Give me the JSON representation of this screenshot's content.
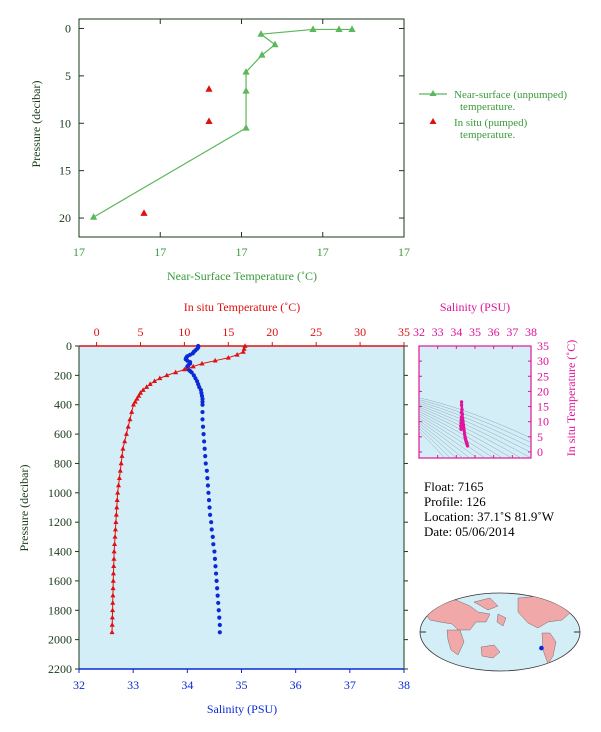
{
  "colors": {
    "green": "#5cb85c",
    "green_text": "#3a9a3a",
    "red": "#e01010",
    "blue": "#0b2ad6",
    "magenta": "#e0149a",
    "axis_dark": "#1a3a1a",
    "panel_bg": "#d4eef7",
    "map_ocean": "#d4eef7",
    "map_land": "#f0a8a8"
  },
  "chart_data": [
    {
      "type": "line",
      "id": "near-surface",
      "xlabel": "Near-Surface Temperature (˚C)",
      "ylabel": "Pressure (decibar)",
      "x_tick_labels": [
        "17",
        "17",
        "17",
        "17",
        "17"
      ],
      "y_ticks": [
        0,
        5,
        10,
        15,
        20
      ],
      "ylim": [
        22,
        -1
      ],
      "legend": {
        "placement": "right",
        "entries": [
          {
            "line1": "Near-surface (unpumped)",
            "line2": "temperature."
          },
          {
            "line1": "In situ (pumped)",
            "line2": "temperature."
          }
        ]
      },
      "x_index_range": [
        0,
        1
      ],
      "series": [
        {
          "name": "Near-surface (unpumped) temperature",
          "marker": "triangle-line",
          "points": [
            {
              "xi": 0.045,
              "p": 19.9
            },
            {
              "xi": 0.514,
              "p": 10.5
            },
            {
              "xi": 0.514,
              "p": 6.6
            },
            {
              "xi": 0.514,
              "p": 4.6
            },
            {
              "xi": 0.563,
              "p": 2.8
            },
            {
              "xi": 0.603,
              "p": 1.7
            },
            {
              "xi": 0.56,
              "p": 0.6
            },
            {
              "xi": 0.72,
              "p": 0.1
            },
            {
              "xi": 0.8,
              "p": 0.1
            },
            {
              "xi": 0.84,
              "p": 0.1
            }
          ]
        },
        {
          "name": "In situ (pumped) temperature",
          "marker": "triangle",
          "points": [
            {
              "xi": 0.4,
              "p": 6.4
            },
            {
              "xi": 0.4,
              "p": 9.8
            },
            {
              "xi": 0.2,
              "p": 19.5
            }
          ]
        }
      ]
    },
    {
      "type": "scatter",
      "id": "profile",
      "top_axis_label": "In situ Temperature (˚C)",
      "bottom_axis_label": "Salinity (PSU)",
      "ylabel": "Pressure (decibar)",
      "temp_ticks": [
        0,
        5,
        10,
        15,
        20,
        25,
        30,
        35
      ],
      "sal_ticks": [
        32,
        33,
        34,
        35,
        36,
        37,
        38
      ],
      "pressure_ticks": [
        0,
        200,
        400,
        600,
        800,
        1000,
        1200,
        1400,
        1600,
        1800,
        2000,
        2200
      ],
      "temp_range": [
        -2,
        35
      ],
      "sal_range": [
        32,
        38
      ],
      "pressure_range": [
        0,
        2200
      ],
      "temperature": {
        "p": [
          0,
          20,
          40,
          60,
          80,
          100,
          120,
          140,
          160,
          180,
          200,
          220,
          240,
          260,
          280,
          300,
          320,
          340,
          360,
          380,
          400,
          450,
          500,
          550,
          600,
          650,
          700,
          750,
          800,
          850,
          900,
          950,
          1000,
          1050,
          1100,
          1150,
          1200,
          1250,
          1300,
          1350,
          1400,
          1450,
          1500,
          1550,
          1600,
          1650,
          1700,
          1750,
          1800,
          1850,
          1900,
          1950
        ],
        "t": [
          16.9,
          16.8,
          16.7,
          16.0,
          15.0,
          13.5,
          12.0,
          11.0,
          10.0,
          9.0,
          8.0,
          7.2,
          6.6,
          6.1,
          5.7,
          5.3,
          5.0,
          4.8,
          4.6,
          4.4,
          4.2,
          4.0,
          3.8,
          3.6,
          3.4,
          3.2,
          3.0,
          2.9,
          2.8,
          2.7,
          2.6,
          2.5,
          2.4,
          2.35,
          2.3,
          2.25,
          2.2,
          2.15,
          2.1,
          2.05,
          2.0,
          1.98,
          1.95,
          1.92,
          1.9,
          1.88,
          1.86,
          1.84,
          1.82,
          1.8,
          1.78,
          1.76
        ]
      },
      "salinity": {
        "p": [
          0,
          10,
          20,
          30,
          40,
          50,
          60,
          70,
          80,
          90,
          100,
          110,
          120,
          130,
          140,
          150,
          160,
          170,
          180,
          200,
          220,
          240,
          260,
          280,
          300,
          320,
          340,
          360,
          380,
          400,
          450,
          500,
          550,
          600,
          650,
          700,
          750,
          800,
          850,
          900,
          950,
          1000,
          1050,
          1100,
          1150,
          1200,
          1250,
          1300,
          1350,
          1400,
          1450,
          1500,
          1550,
          1600,
          1650,
          1700,
          1750,
          1800,
          1850,
          1900,
          1950
        ],
        "s": [
          34.2,
          34.2,
          34.18,
          34.15,
          34.12,
          34.1,
          34.05,
          34.0,
          33.98,
          33.97,
          34.0,
          34.05,
          34.05,
          34.02,
          34.0,
          34.0,
          34.02,
          34.05,
          34.08,
          34.12,
          34.15,
          34.18,
          34.2,
          34.22,
          34.25,
          34.26,
          34.27,
          34.28,
          34.28,
          34.28,
          34.28,
          34.28,
          34.29,
          34.3,
          34.31,
          34.32,
          34.33,
          34.34,
          34.36,
          34.37,
          34.38,
          34.39,
          34.4,
          34.41,
          34.42,
          34.44,
          34.45,
          34.47,
          34.48,
          34.5,
          34.51,
          34.52,
          34.53,
          34.54,
          34.55,
          34.56,
          34.57,
          34.58,
          34.59,
          34.6,
          34.6
        ]
      }
    },
    {
      "type": "scatter",
      "id": "ts-diagram",
      "top_axis_label": "Salinity (PSU)",
      "right_axis_label": "In situ Temperature (˚C)",
      "sal_ticks": [
        32,
        33,
        34,
        35,
        36,
        37,
        38
      ],
      "temp_ticks": [
        0,
        5,
        10,
        15,
        20,
        25,
        30,
        35
      ],
      "sal_range": [
        32,
        38
      ],
      "temp_range": [
        -2,
        35
      ],
      "points": {
        "s": [
          34.28,
          34.3,
          34.32,
          34.34,
          34.36,
          34.38,
          34.4,
          34.42,
          34.44,
          34.46,
          34.48,
          34.5,
          34.52,
          34.54,
          34.56,
          34.58,
          34.6,
          34.28,
          34.27,
          34.27,
          34.26,
          34.25,
          34.24,
          34.25
        ],
        "t": [
          16.5,
          14.0,
          12.5,
          11.0,
          10.0,
          9.0,
          8.0,
          7.0,
          6.0,
          5.2,
          4.6,
          4.1,
          3.6,
          3.2,
          2.9,
          2.5,
          2.0,
          15.5,
          13.0,
          11.5,
          10.5,
          9.5,
          8.5,
          7.5
        ]
      }
    }
  ],
  "info": {
    "float": "Float:  7165",
    "profile": "Profile:  126",
    "location": "Location:  37.1˚S  81.9˚W",
    "date": "Date:  05/06/2014"
  },
  "map": {
    "marker_lat": -37.1,
    "marker_lon": -81.9
  }
}
